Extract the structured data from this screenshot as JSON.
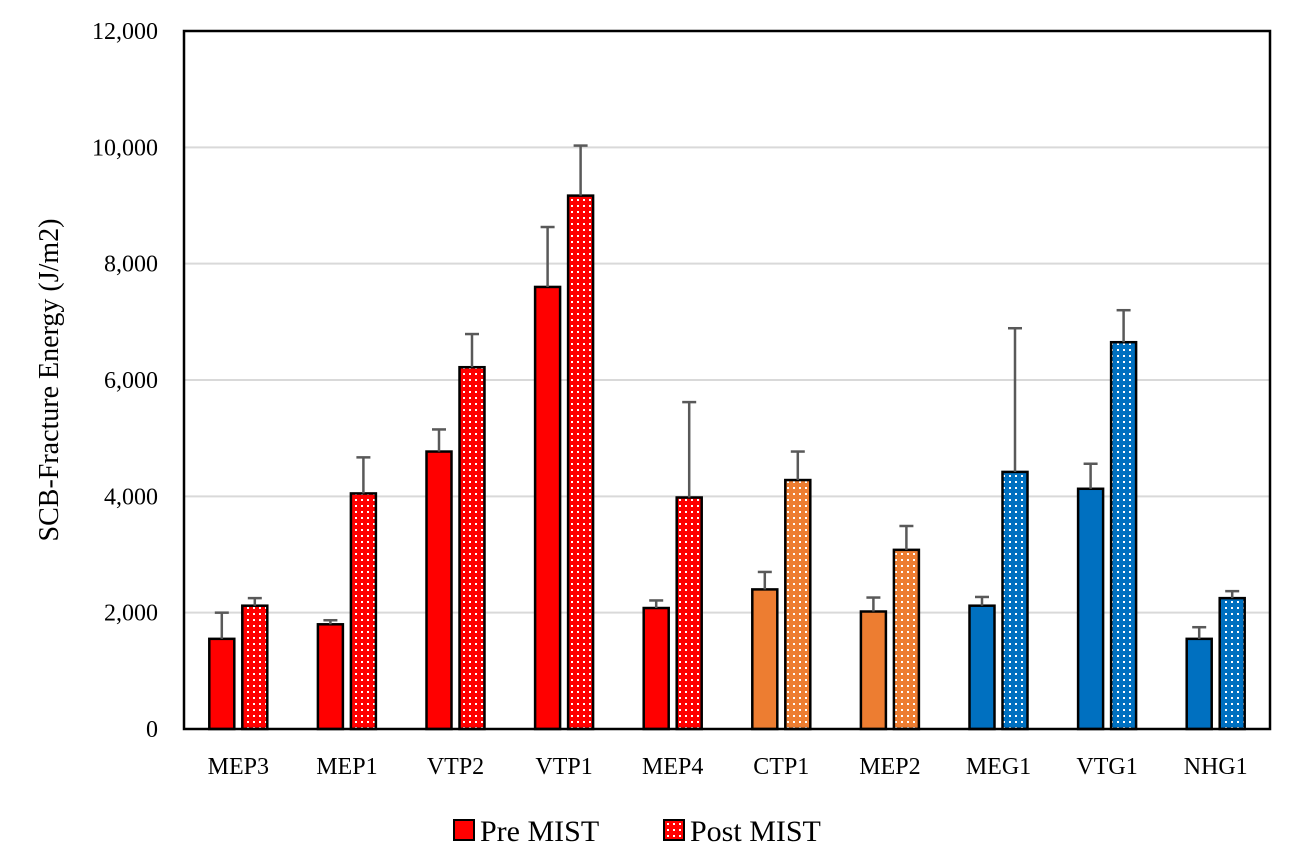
{
  "chart_data": {
    "type": "bar",
    "title": "",
    "xlabel": "",
    "ylabel": "SCB-Fracture Energy (J/m2)",
    "ylim": [
      0,
      12000
    ],
    "ytick_values": [
      0,
      2000,
      4000,
      6000,
      8000,
      10000,
      12000
    ],
    "ytick_labels": [
      "0",
      "2,000",
      "4,000",
      "6,000",
      "8,000",
      "10,000",
      "12,000"
    ],
    "grid": true,
    "legend_position": "bottom",
    "categories": [
      "MEP3",
      "MEP1",
      "VTP2",
      "VTP1",
      "MEP4",
      "CTP1",
      "MEP2",
      "MEG1",
      "VTG1",
      "NHG1"
    ],
    "category_colors": [
      "#ff0000",
      "#ff0000",
      "#ff0000",
      "#ff0000",
      "#ff0000",
      "#ed7d31",
      "#ed7d31",
      "#0070c0",
      "#0070c0",
      "#0070c0"
    ],
    "series": [
      {
        "name": "Pre MIST",
        "pattern": "solid",
        "values": [
          1550,
          1800,
          4770,
          7600,
          2080,
          2400,
          2020,
          2120,
          4130,
          1550
        ],
        "errors": [
          450,
          70,
          380,
          1030,
          130,
          300,
          240,
          150,
          430,
          200
        ]
      },
      {
        "name": "Post MIST",
        "pattern": "dotted",
        "values": [
          2120,
          4050,
          6220,
          9170,
          3980,
          4280,
          3080,
          4420,
          6650,
          2250
        ],
        "errors": [
          130,
          620,
          570,
          860,
          1640,
          490,
          410,
          2470,
          550,
          120
        ]
      }
    ],
    "legend": [
      {
        "label": "Pre MIST",
        "pattern": "solid",
        "color": "#ff0000"
      },
      {
        "label": "Post MIST",
        "pattern": "dotted",
        "color": "#ff0000"
      }
    ],
    "error_bar_color": "#595959",
    "grid_color": "#d9d9d9"
  }
}
